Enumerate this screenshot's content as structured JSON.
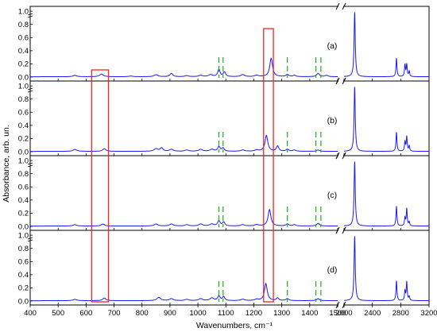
{
  "chart_data": {
    "type": "line",
    "xlabel": "Wavenumbers, cm⁻¹",
    "ylabel": "Absorbance, arb. un.",
    "x_ticks_left": [
      400,
      500,
      600,
      700,
      800,
      900,
      1000,
      1100,
      1200,
      1300,
      1400,
      1500
    ],
    "x_ticks_right": [
      2000,
      2400,
      2800,
      3200
    ],
    "x_segments": [
      [
        400,
        1500
      ],
      [
        2000,
        3200
      ]
    ],
    "y_ticks": [
      "0.0",
      "0.2",
      "0.4",
      "0.6",
      "0.8",
      "1.0"
    ],
    "ylim": [
      0,
      1.05
    ],
    "line_color": "#1a1aff",
    "highlight_color": "#ff2020",
    "marker_color": "#22aa22",
    "panels": [
      {
        "label": "(a)",
        "peaks": [
          {
            "x": 560,
            "h": 0.02,
            "w": 8
          },
          {
            "x": 655,
            "h": 0.04,
            "w": 8
          },
          {
            "x": 760,
            "h": 0.01,
            "w": 8
          },
          {
            "x": 850,
            "h": 0.03,
            "w": 8
          },
          {
            "x": 905,
            "h": 0.05,
            "w": 6
          },
          {
            "x": 960,
            "h": 0.015,
            "w": 8
          },
          {
            "x": 1010,
            "h": 0.02,
            "w": 8
          },
          {
            "x": 1045,
            "h": 0.03,
            "w": 8
          },
          {
            "x": 1075,
            "h": 0.11,
            "w": 5
          },
          {
            "x": 1095,
            "h": 0.07,
            "w": 5
          },
          {
            "x": 1160,
            "h": 0.03,
            "w": 8
          },
          {
            "x": 1210,
            "h": 0.02,
            "w": 8
          },
          {
            "x": 1262,
            "h": 0.28,
            "w": 6
          },
          {
            "x": 1320,
            "h": 0.03,
            "w": 6
          },
          {
            "x": 1345,
            "h": 0.02,
            "w": 6
          },
          {
            "x": 1430,
            "h": 0.05,
            "w": 6
          },
          {
            "x": 1460,
            "h": 0.02,
            "w": 6
          },
          {
            "x": 2150,
            "h": 0.98,
            "w": 10
          },
          {
            "x": 2740,
            "h": 0.28,
            "w": 8
          },
          {
            "x": 2860,
            "h": 0.18,
            "w": 8
          },
          {
            "x": 2885,
            "h": 0.18,
            "w": 8
          },
          {
            "x": 2920,
            "h": 0.08,
            "w": 8
          }
        ]
      },
      {
        "label": "(b)",
        "peaks": [
          {
            "x": 560,
            "h": 0.03,
            "w": 8
          },
          {
            "x": 665,
            "h": 0.04,
            "w": 7
          },
          {
            "x": 850,
            "h": 0.04,
            "w": 8
          },
          {
            "x": 870,
            "h": 0.05,
            "w": 6
          },
          {
            "x": 905,
            "h": 0.03,
            "w": 8
          },
          {
            "x": 960,
            "h": 0.02,
            "w": 8
          },
          {
            "x": 1010,
            "h": 0.03,
            "w": 8
          },
          {
            "x": 1050,
            "h": 0.03,
            "w": 8
          },
          {
            "x": 1075,
            "h": 0.07,
            "w": 5
          },
          {
            "x": 1090,
            "h": 0.05,
            "w": 5
          },
          {
            "x": 1160,
            "h": 0.02,
            "w": 8
          },
          {
            "x": 1210,
            "h": 0.02,
            "w": 8
          },
          {
            "x": 1245,
            "h": 0.24,
            "w": 6
          },
          {
            "x": 1285,
            "h": 0.08,
            "w": 5
          },
          {
            "x": 1320,
            "h": 0.03,
            "w": 6
          },
          {
            "x": 1345,
            "h": 0.02,
            "w": 6
          },
          {
            "x": 1430,
            "h": 0.02,
            "w": 6
          },
          {
            "x": 2150,
            "h": 0.98,
            "w": 10
          },
          {
            "x": 2740,
            "h": 0.29,
            "w": 8
          },
          {
            "x": 2860,
            "h": 0.14,
            "w": 8
          },
          {
            "x": 2885,
            "h": 0.22,
            "w": 8
          },
          {
            "x": 2920,
            "h": 0.08,
            "w": 8
          }
        ]
      },
      {
        "label": "(c)",
        "peaks": [
          {
            "x": 560,
            "h": 0.02,
            "w": 8
          },
          {
            "x": 660,
            "h": 0.03,
            "w": 7
          },
          {
            "x": 850,
            "h": 0.03,
            "w": 8
          },
          {
            "x": 905,
            "h": 0.03,
            "w": 8
          },
          {
            "x": 960,
            "h": 0.02,
            "w": 8
          },
          {
            "x": 1010,
            "h": 0.03,
            "w": 8
          },
          {
            "x": 1050,
            "h": 0.03,
            "w": 8
          },
          {
            "x": 1075,
            "h": 0.08,
            "w": 5
          },
          {
            "x": 1092,
            "h": 0.06,
            "w": 5
          },
          {
            "x": 1160,
            "h": 0.02,
            "w": 8
          },
          {
            "x": 1210,
            "h": 0.02,
            "w": 8
          },
          {
            "x": 1256,
            "h": 0.25,
            "w": 6
          },
          {
            "x": 1320,
            "h": 0.03,
            "w": 6
          },
          {
            "x": 1345,
            "h": 0.02,
            "w": 6
          },
          {
            "x": 1430,
            "h": 0.04,
            "w": 6
          },
          {
            "x": 2150,
            "h": 0.98,
            "w": 10
          },
          {
            "x": 2740,
            "h": 0.3,
            "w": 8
          },
          {
            "x": 2860,
            "h": 0.12,
            "w": 8
          },
          {
            "x": 2885,
            "h": 0.26,
            "w": 8
          },
          {
            "x": 2920,
            "h": 0.06,
            "w": 8
          }
        ]
      },
      {
        "label": "(d)",
        "peaks": [
          {
            "x": 560,
            "h": 0.02,
            "w": 8
          },
          {
            "x": 665,
            "h": 0.04,
            "w": 7
          },
          {
            "x": 860,
            "h": 0.05,
            "w": 8
          },
          {
            "x": 905,
            "h": 0.03,
            "w": 8
          },
          {
            "x": 960,
            "h": 0.02,
            "w": 8
          },
          {
            "x": 1010,
            "h": 0.03,
            "w": 8
          },
          {
            "x": 1050,
            "h": 0.04,
            "w": 8
          },
          {
            "x": 1075,
            "h": 0.07,
            "w": 5
          },
          {
            "x": 1092,
            "h": 0.06,
            "w": 5
          },
          {
            "x": 1160,
            "h": 0.02,
            "w": 8
          },
          {
            "x": 1210,
            "h": 0.02,
            "w": 8
          },
          {
            "x": 1243,
            "h": 0.26,
            "w": 6
          },
          {
            "x": 1285,
            "h": 0.04,
            "w": 5
          },
          {
            "x": 1320,
            "h": 0.03,
            "w": 6
          },
          {
            "x": 1430,
            "h": 0.03,
            "w": 6
          },
          {
            "x": 2150,
            "h": 0.98,
            "w": 10
          },
          {
            "x": 2740,
            "h": 0.3,
            "w": 8
          },
          {
            "x": 2860,
            "h": 0.14,
            "w": 8
          },
          {
            "x": 2885,
            "h": 0.28,
            "w": 8
          },
          {
            "x": 2920,
            "h": 0.06,
            "w": 8
          }
        ]
      }
    ],
    "highlight_boxes": [
      [
        620,
        680
      ],
      [
        1235,
        1270
      ]
    ],
    "marker_lines": [
      1075,
      1090,
      1320,
      1422,
      1440
    ]
  }
}
